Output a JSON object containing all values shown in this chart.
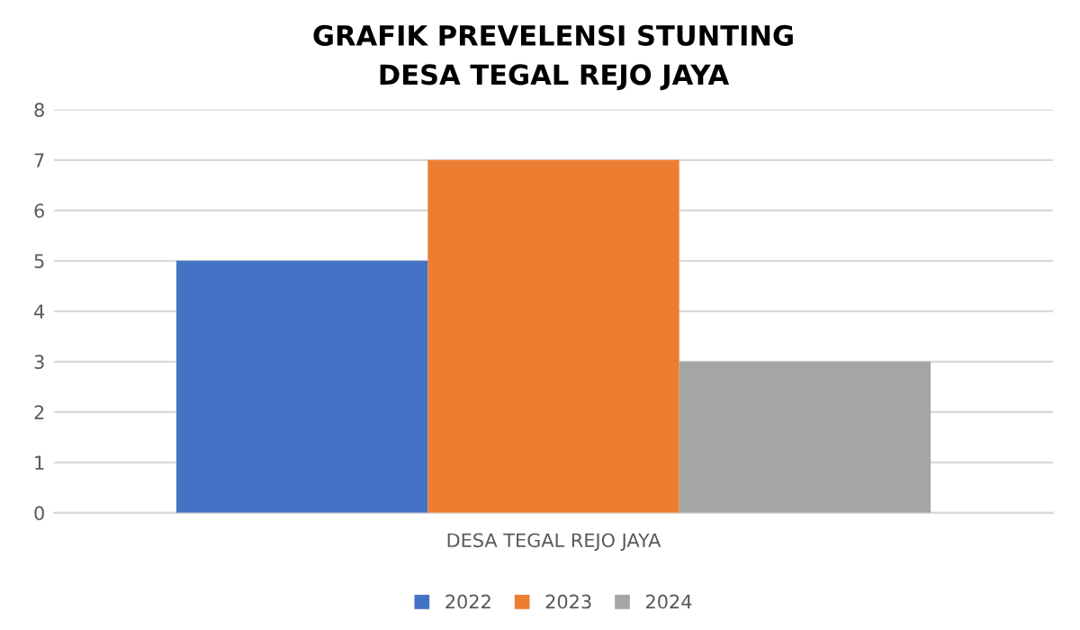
{
  "chart_data": {
    "type": "bar",
    "title": "GRAFIK PREVELENSI STUNTING\nDESA TEGAL REJO JAYA",
    "categories": [
      "DESA TEGAL REJO JAYA"
    ],
    "series": [
      {
        "name": "2022",
        "color": "#4472c4",
        "values": [
          5
        ]
      },
      {
        "name": "2023",
        "color": "#ed7d31",
        "values": [
          7
        ]
      },
      {
        "name": "2024",
        "color": "#a5a5a5",
        "values": [
          3
        ]
      }
    ],
    "ylim": [
      0,
      8
    ],
    "yticks": [
      0,
      1,
      2,
      3,
      4,
      5,
      6,
      7,
      8
    ],
    "grid": "y",
    "legend": "bottom"
  }
}
